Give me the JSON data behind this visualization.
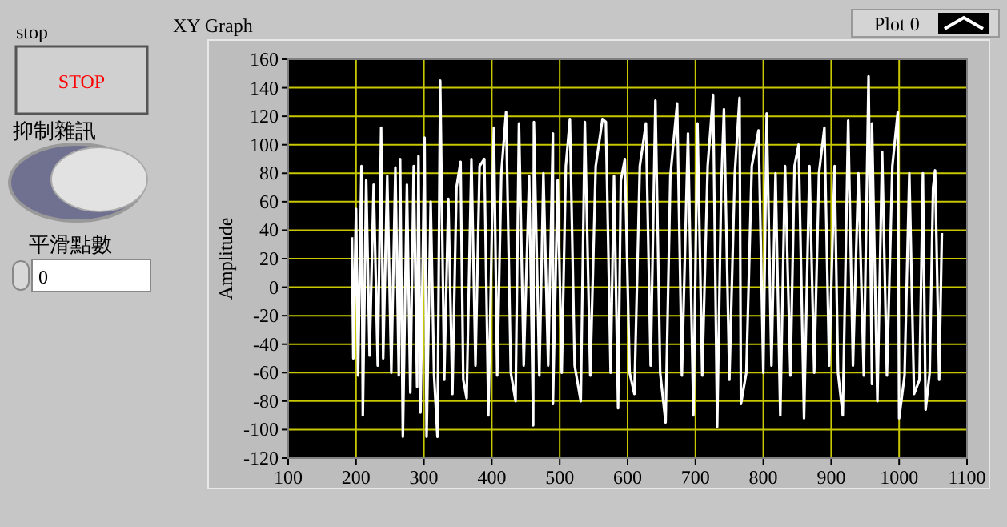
{
  "chart_data": [
    {
      "type": "line",
      "title": "XY Graph",
      "ylabel": "Amplitude",
      "legend": "top right",
      "grid": true,
      "marker": "none",
      "line_style": "solid",
      "xlim": [
        100,
        1100
      ],
      "ylim": [
        -120,
        160
      ],
      "xticks": [
        100,
        200,
        300,
        400,
        500,
        600,
        700,
        800,
        900,
        1000,
        1100
      ],
      "yticks": [
        -120,
        -100,
        -80,
        -60,
        -40,
        -20,
        0,
        20,
        40,
        60,
        80,
        100,
        120,
        140,
        160
      ],
      "series": [
        {
          "name": "Plot 0",
          "color": "#ffffff",
          "x": [
            194,
            196,
            200,
            203,
            208,
            210,
            215,
            220,
            226,
            232,
            237,
            240,
            246,
            252,
            258,
            263,
            265,
            269,
            275,
            280,
            285,
            290,
            292,
            295,
            301,
            304,
            310,
            315,
            320,
            324,
            330,
            336,
            342,
            348,
            354,
            358,
            363,
            370,
            376,
            382,
            389,
            395,
            403,
            408,
            414,
            421,
            428,
            435,
            440,
            447,
            455,
            461,
            462,
            470,
            476,
            483,
            490,
            490,
            497,
            503,
            509,
            515,
            522,
            531,
            537,
            545,
            553,
            563,
            568,
            575,
            580,
            586,
            590,
            596,
            603,
            610,
            618,
            627,
            634,
            641,
            648,
            656,
            663,
            673,
            680,
            689,
            697,
            703,
            710,
            718,
            726,
            732,
            738,
            742,
            750,
            758,
            765,
            767,
            775,
            783,
            793,
            800,
            805,
            812,
            818,
            825,
            832,
            840,
            846,
            852,
            860,
            868,
            875,
            882,
            890,
            897,
            905,
            910,
            917,
            925,
            932,
            940,
            948,
            955,
            960,
            960,
            968,
            975,
            982,
            990,
            998,
            1000,
            1008,
            1015,
            1022,
            1030,
            1035,
            1039,
            1045,
            1050,
            1053,
            1059,
            1063
          ],
          "values": [
            35,
            -50,
            55,
            -62,
            85,
            -90,
            75,
            -48,
            72,
            -55,
            112,
            -50,
            78,
            -60,
            84,
            -62,
            90,
            -105,
            72,
            -74,
            85,
            -70,
            92,
            -88,
            105,
            -105,
            60,
            -62,
            -105,
            145,
            -65,
            62,
            -75,
            70,
            88,
            -65,
            -78,
            90,
            -55,
            85,
            90,
            -90,
            112,
            -62,
            80,
            123,
            -60,
            -80,
            115,
            -55,
            78,
            -97,
            116,
            -62,
            80,
            -55,
            108,
            -82,
            75,
            -60,
            85,
            118,
            -55,
            -80,
            116,
            -62,
            85,
            118,
            116,
            -60,
            78,
            -85,
            75,
            90,
            -60,
            -75,
            85,
            115,
            -55,
            131,
            -60,
            -95,
            78,
            129,
            -62,
            108,
            -90,
            115,
            -62,
            85,
            135,
            -98,
            70,
            125,
            -65,
            80,
            133,
            -82,
            -60,
            85,
            110,
            -60,
            122,
            -55,
            80,
            -90,
            85,
            -62,
            85,
            100,
            -92,
            85,
            -60,
            80,
            112,
            -55,
            85,
            -60,
            -90,
            117,
            -55,
            80,
            -62,
            148,
            -68,
            115,
            -80,
            95,
            -62,
            85,
            123,
            -92,
            -62,
            80,
            -75,
            -65,
            80,
            -86,
            -60,
            70,
            82,
            -65,
            38
          ]
        }
      ]
    },
    {
      "type": "other",
      "annotations": [
        "stop",
        "STOP",
        "抑制雜訊",
        "平滑點數",
        "0"
      ]
    }
  ]
}
